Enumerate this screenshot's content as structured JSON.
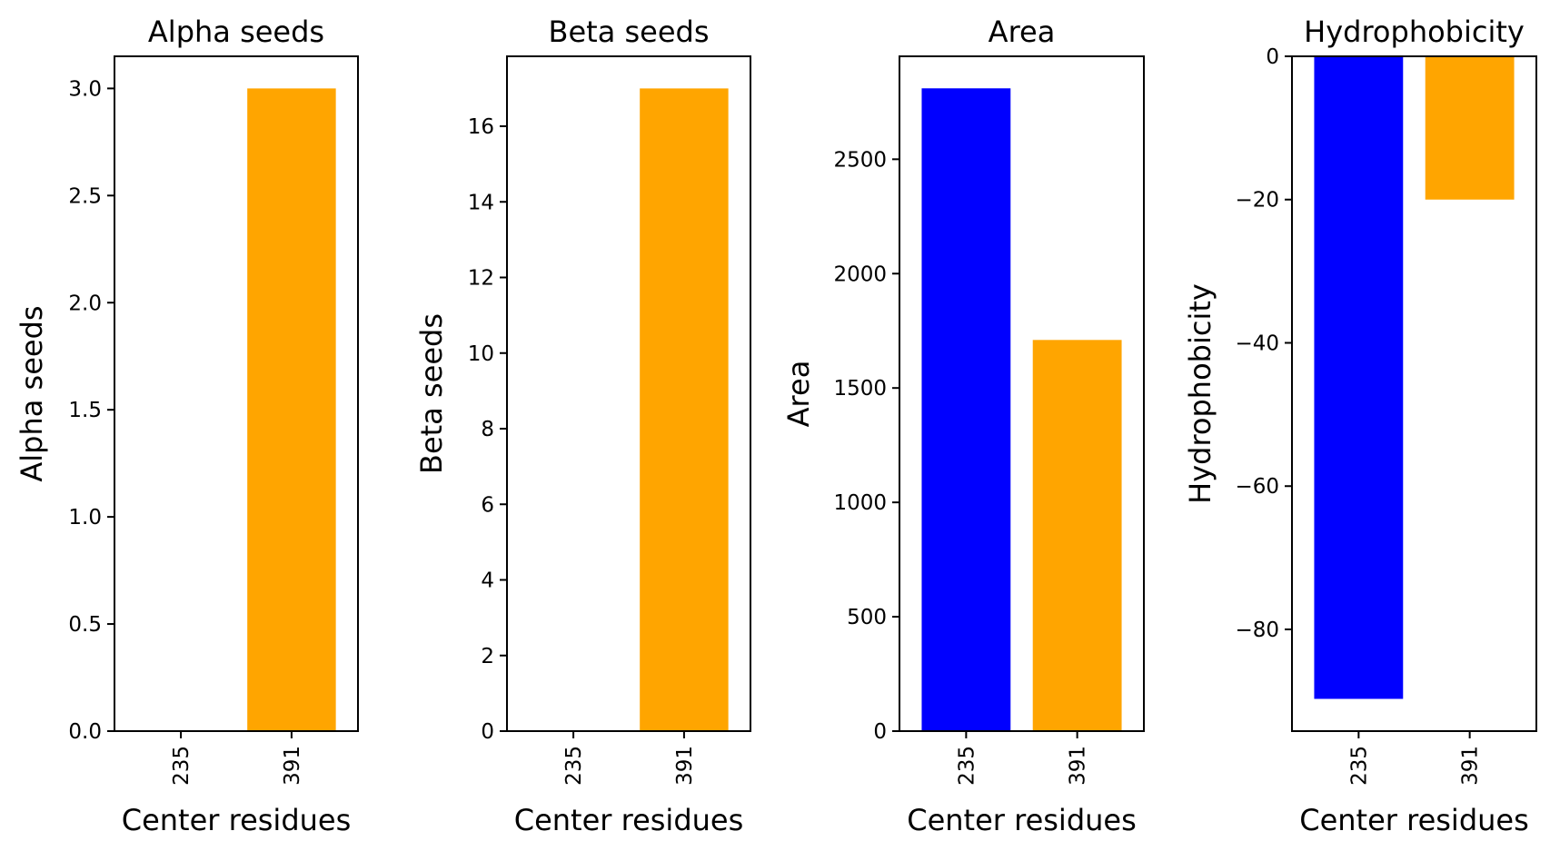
{
  "chart_data": [
    {
      "type": "bar",
      "title": "Alpha seeds",
      "xlabel": "Center residues",
      "ylabel": "Alpha seeds",
      "categories": [
        "235",
        "391"
      ],
      "values": [
        0,
        3
      ],
      "colors": [
        "#0000ff",
        "#ffa500"
      ],
      "ylim": [
        0,
        3.15
      ],
      "yticks": [
        0,
        0.5,
        1,
        1.5,
        2,
        2.5,
        3
      ],
      "ytick_labels": [
        "0.0",
        "0.5",
        "1.0",
        "1.5",
        "2.0",
        "2.5",
        "3.0"
      ]
    },
    {
      "type": "bar",
      "title": "Beta seeds",
      "xlabel": "Center residues",
      "ylabel": "Beta seeds",
      "categories": [
        "235",
        "391"
      ],
      "values": [
        0,
        17
      ],
      "colors": [
        "#0000ff",
        "#ffa500"
      ],
      "ylim": [
        0,
        17.85
      ],
      "yticks": [
        0,
        2,
        4,
        6,
        8,
        10,
        12,
        14,
        16
      ],
      "ytick_labels": [
        "0",
        "2",
        "4",
        "6",
        "8",
        "10",
        "12",
        "14",
        "16"
      ]
    },
    {
      "type": "bar",
      "title": "Area",
      "xlabel": "Center residues",
      "ylabel": "Area",
      "categories": [
        "235",
        "391"
      ],
      "values": [
        2810,
        1710
      ],
      "colors": [
        "#0000ff",
        "#ffa500"
      ],
      "ylim": [
        0,
        2950
      ],
      "yticks": [
        0,
        500,
        1000,
        1500,
        2000,
        2500
      ],
      "ytick_labels": [
        "0",
        "500",
        "1000",
        "1500",
        "2000",
        "2500"
      ]
    },
    {
      "type": "bar",
      "title": "Hydrophobicity",
      "xlabel": "Center residues",
      "ylabel": "Hydrophobicity",
      "categories": [
        "235",
        "391"
      ],
      "values": [
        -89.7,
        -20
      ],
      "colors": [
        "#0000ff",
        "#ffa500"
      ],
      "ylim": [
        -94.2,
        0
      ],
      "yticks": [
        0,
        -20,
        -40,
        -60,
        -80
      ],
      "ytick_labels": [
        "0",
        "−20",
        "−40",
        "−60",
        "−80"
      ]
    }
  ]
}
